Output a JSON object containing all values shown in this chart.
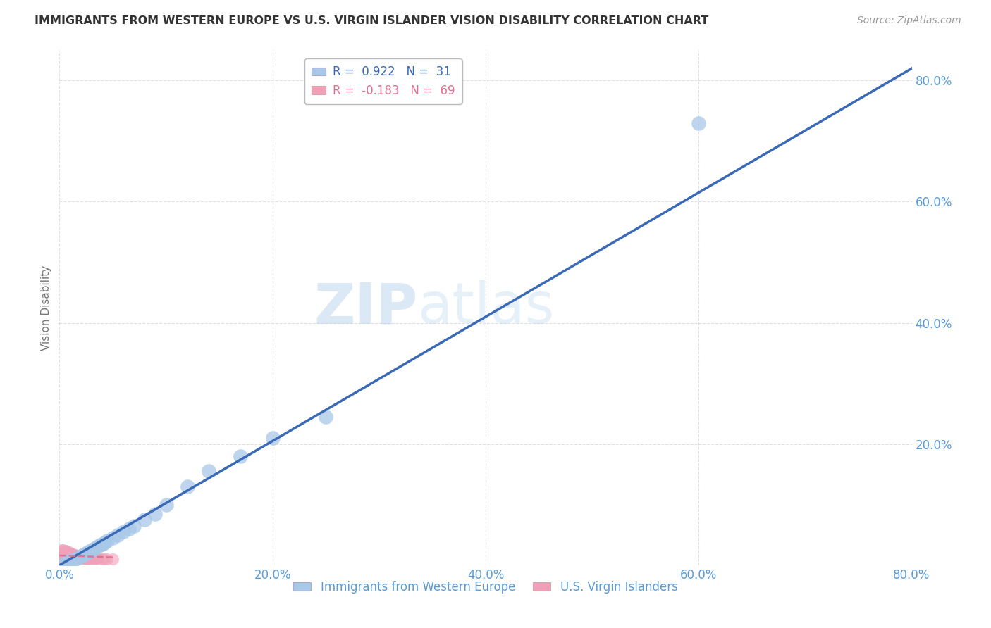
{
  "title": "IMMIGRANTS FROM WESTERN EUROPE VS U.S. VIRGIN ISLANDER VISION DISABILITY CORRELATION CHART",
  "source": "Source: ZipAtlas.com",
  "ylabel": "Vision Disability",
  "xlim": [
    0.0,
    0.8
  ],
  "ylim": [
    0.0,
    0.85
  ],
  "xticks": [
    0.0,
    0.2,
    0.4,
    0.6,
    0.8
  ],
  "yticks": [
    0.2,
    0.4,
    0.6,
    0.8
  ],
  "xticklabels": [
    "0.0%",
    "20.0%",
    "40.0%",
    "60.0%",
    "80.0%"
  ],
  "yticklabels": [
    "20.0%",
    "40.0%",
    "60.0%",
    "80.0%"
  ],
  "blue_R": 0.922,
  "blue_N": 31,
  "pink_R": -0.183,
  "pink_N": 69,
  "blue_color": "#a8c8e8",
  "pink_color": "#f0a0b8",
  "blue_line_color": "#3a6ab5",
  "pink_line_color": "#e07090",
  "legend_label_blue": "Immigrants from Western Europe",
  "legend_label_pink": "U.S. Virgin Islanders",
  "watermark_zip": "ZIP",
  "watermark_atlas": "atlas",
  "background_color": "#ffffff",
  "grid_color": "#cccccc",
  "title_color": "#333333",
  "axis_color": "#5b9bd5",
  "blue_scatter_x": [
    0.005,
    0.008,
    0.01,
    0.012,
    0.015,
    0.018,
    0.02,
    0.022,
    0.025,
    0.027,
    0.03,
    0.032,
    0.035,
    0.038,
    0.04,
    0.042,
    0.045,
    0.05,
    0.055,
    0.06,
    0.065,
    0.07,
    0.08,
    0.09,
    0.1,
    0.12,
    0.14,
    0.17,
    0.2,
    0.25,
    0.6
  ],
  "blue_scatter_y": [
    0.003,
    0.005,
    0.007,
    0.008,
    0.01,
    0.013,
    0.015,
    0.017,
    0.02,
    0.022,
    0.025,
    0.027,
    0.03,
    0.033,
    0.035,
    0.037,
    0.04,
    0.045,
    0.05,
    0.055,
    0.06,
    0.065,
    0.075,
    0.085,
    0.1,
    0.13,
    0.155,
    0.18,
    0.21,
    0.245,
    0.73
  ],
  "blue_line_x": [
    0.0,
    0.8
  ],
  "blue_line_y": [
    0.0,
    0.82
  ],
  "pink_scatter_x": [
    0.001,
    0.001,
    0.002,
    0.002,
    0.003,
    0.003,
    0.003,
    0.004,
    0.004,
    0.004,
    0.005,
    0.005,
    0.005,
    0.006,
    0.006,
    0.006,
    0.007,
    0.007,
    0.007,
    0.008,
    0.008,
    0.008,
    0.009,
    0.009,
    0.009,
    0.01,
    0.01,
    0.01,
    0.011,
    0.011,
    0.012,
    0.012,
    0.013,
    0.013,
    0.014,
    0.014,
    0.015,
    0.015,
    0.016,
    0.016,
    0.017,
    0.017,
    0.018,
    0.018,
    0.019,
    0.02,
    0.02,
    0.021,
    0.021,
    0.022,
    0.022,
    0.023,
    0.024,
    0.025,
    0.025,
    0.026,
    0.027,
    0.028,
    0.029,
    0.03,
    0.031,
    0.032,
    0.034,
    0.035,
    0.037,
    0.04,
    0.042,
    0.045,
    0.05
  ],
  "pink_scatter_y": [
    0.015,
    0.02,
    0.018,
    0.025,
    0.012,
    0.018,
    0.022,
    0.015,
    0.02,
    0.025,
    0.012,
    0.018,
    0.022,
    0.014,
    0.019,
    0.024,
    0.013,
    0.018,
    0.022,
    0.012,
    0.017,
    0.021,
    0.013,
    0.017,
    0.022,
    0.012,
    0.016,
    0.021,
    0.013,
    0.018,
    0.012,
    0.017,
    0.013,
    0.018,
    0.012,
    0.017,
    0.012,
    0.016,
    0.012,
    0.016,
    0.011,
    0.015,
    0.011,
    0.015,
    0.011,
    0.011,
    0.014,
    0.011,
    0.014,
    0.011,
    0.013,
    0.011,
    0.011,
    0.011,
    0.013,
    0.011,
    0.011,
    0.011,
    0.011,
    0.011,
    0.011,
    0.011,
    0.011,
    0.011,
    0.011,
    0.01,
    0.01,
    0.01,
    0.01
  ],
  "pink_line_x": [
    0.0,
    0.05
  ],
  "pink_line_y": [
    0.016,
    0.013
  ]
}
